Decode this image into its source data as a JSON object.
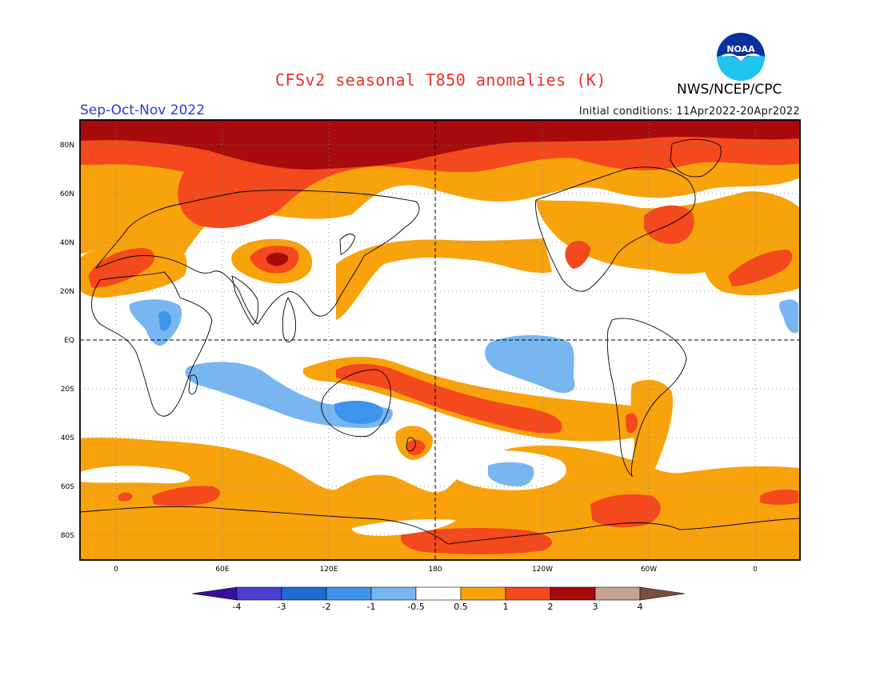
{
  "title": "CFSv2 seasonal T850 anomalies (K)",
  "organization": "NWS/NCEP/CPC",
  "logo_text": "NOAA",
  "season": "Sep-Oct-Nov 2022",
  "initial_conditions": "Initial conditions: 11Apr2022-20Apr2022",
  "lat_labels": [
    "80N",
    "60N",
    "40N",
    "20N",
    "EQ",
    "20S",
    "40S",
    "60S",
    "80S"
  ],
  "lon_labels": [
    "0",
    "60E",
    "120E",
    "180",
    "120W",
    "60W",
    "0"
  ],
  "colorbar": {
    "tick_labels": [
      "-4",
      "-3",
      "-2",
      "-1",
      "-0.5",
      "0.5",
      "1",
      "2",
      "3",
      "4"
    ],
    "colors": [
      "#3a0fa0",
      "#4a3fd0",
      "#1f6bd6",
      "#3f94ec",
      "#78b6f2",
      "#ffffff",
      "#f8a20c",
      "#f4491c",
      "#a80b0b",
      "#c8a292",
      "#7a4e3e"
    ]
  },
  "colors": {
    "title": "#e8322a",
    "season": "#1f3fd6",
    "warm_1": "#f8a20c",
    "warm_2": "#f4491c",
    "warm_3": "#a80b0b",
    "cool_1": "#78b6f2",
    "cool_2": "#3f94ec"
  }
}
